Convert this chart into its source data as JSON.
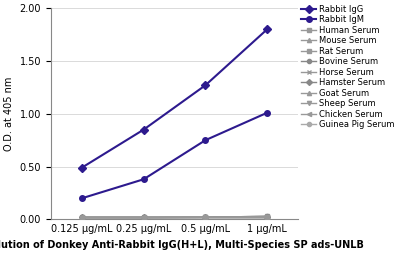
{
  "x_positions": [
    1,
    2,
    3,
    4
  ],
  "x_labels": [
    "0.125 μg/mL",
    "0.25 μg/mL",
    "0.5 μg/mL",
    "1 μg/mL"
  ],
  "series": [
    {
      "label": "Rabbit IgG",
      "values": [
        0.49,
        0.85,
        1.27,
        1.8
      ],
      "color": "#2d1a8e",
      "marker": "D",
      "linestyle": "-",
      "linewidth": 1.5,
      "markersize": 4,
      "zorder": 4
    },
    {
      "label": "Rabbit IgM",
      "values": [
        0.2,
        0.38,
        0.75,
        1.01
      ],
      "color": "#2d1a8e",
      "marker": "o",
      "linestyle": "-",
      "linewidth": 1.5,
      "markersize": 4,
      "zorder": 4
    },
    {
      "label": "Human Serum",
      "values": [
        0.02,
        0.02,
        0.02,
        0.03
      ],
      "color": "#999999",
      "marker": "s",
      "linestyle": "-",
      "linewidth": 1.0,
      "markersize": 3,
      "zorder": 3
    },
    {
      "label": "Mouse Serum",
      "values": [
        0.02,
        0.02,
        0.02,
        0.02
      ],
      "color": "#999999",
      "marker": "^",
      "linestyle": "-",
      "linewidth": 1.0,
      "markersize": 3,
      "zorder": 3
    },
    {
      "label": "Rat Serum",
      "values": [
        0.015,
        0.015,
        0.02,
        0.02
      ],
      "color": "#999999",
      "marker": "s",
      "linestyle": "-",
      "linewidth": 1.0,
      "markersize": 3,
      "zorder": 3
    },
    {
      "label": "Bovine Serum",
      "values": [
        0.02,
        0.02,
        0.02,
        0.03
      ],
      "color": "#888888",
      "marker": "o",
      "linestyle": "-",
      "linewidth": 1.0,
      "markersize": 3,
      "zorder": 3
    },
    {
      "label": "Horse Serum",
      "values": [
        0.02,
        0.02,
        0.02,
        0.02
      ],
      "color": "#999999",
      "marker": "x",
      "linestyle": "-",
      "linewidth": 1.0,
      "markersize": 3,
      "zorder": 3
    },
    {
      "label": "Hamster Serum",
      "values": [
        0.02,
        0.02,
        0.02,
        0.02
      ],
      "color": "#888888",
      "marker": "D",
      "linestyle": "-",
      "linewidth": 1.0,
      "markersize": 3,
      "zorder": 3
    },
    {
      "label": "Goat Serum",
      "values": [
        0.02,
        0.02,
        0.02,
        0.02
      ],
      "color": "#999999",
      "marker": "^",
      "linestyle": "-",
      "linewidth": 1.0,
      "markersize": 3,
      "zorder": 3
    },
    {
      "label": "Sheep Serum",
      "values": [
        0.015,
        0.015,
        0.02,
        0.02
      ],
      "color": "#999999",
      "marker": "v",
      "linestyle": "-",
      "linewidth": 1.0,
      "markersize": 3,
      "zorder": 3
    },
    {
      "label": "Chicken Serum",
      "values": [
        0.02,
        0.02,
        0.02,
        0.025
      ],
      "color": "#999999",
      "marker": "<",
      "linestyle": "-",
      "linewidth": 1.0,
      "markersize": 3,
      "zorder": 3
    },
    {
      "label": "Guinea Pig Serum",
      "values": [
        0.02,
        0.02,
        0.02,
        0.02
      ],
      "color": "#aaaaaa",
      "marker": "o",
      "linestyle": "-",
      "linewidth": 1.0,
      "markersize": 3,
      "zorder": 2
    }
  ],
  "ylim": [
    0.0,
    2.0
  ],
  "yticks": [
    0.0,
    0.5,
    1.0,
    1.5,
    2.0
  ],
  "ylabel": "O.D. at 405 nm",
  "xlabel": "Dilution of Donkey Anti-Rabbit IgG(H+L), Multi-Species SP ads-UNLB",
  "background_color": "#ffffff",
  "grid_color": "#cccccc",
  "legend_fontsize": 6.0,
  "axis_fontsize": 7,
  "label_fontsize": 7
}
